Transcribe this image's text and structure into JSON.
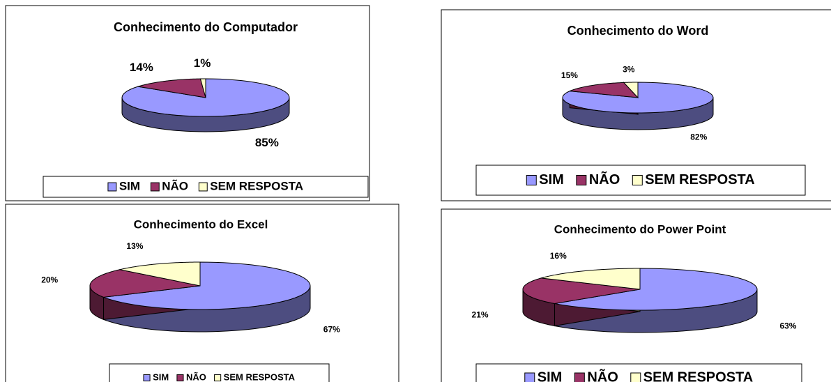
{
  "chart_data": [
    {
      "type": "pie",
      "title": "Conhecimento do Computador",
      "categories": [
        "SIM",
        "NÃO",
        "SEM RESPOSTA"
      ],
      "values": [
        85,
        14,
        1
      ],
      "value_labels": [
        "85%",
        "14%",
        "1%"
      ],
      "colors": [
        "#9999ff",
        "#993366",
        "#ffffcc"
      ],
      "legend": "bottom"
    },
    {
      "type": "pie",
      "title": "Conhecimento do Word",
      "categories": [
        "SIM",
        "NÃO",
        "SEM RESPOSTA"
      ],
      "values": [
        82,
        15,
        3
      ],
      "value_labels": [
        "82%",
        "15%",
        "3%"
      ],
      "colors": [
        "#9999ff",
        "#993366",
        "#ffffcc"
      ],
      "legend": "bottom"
    },
    {
      "type": "pie",
      "title": "Conhecimento do Excel",
      "categories": [
        "SIM",
        "NÃO",
        "SEM RESPOSTA"
      ],
      "values": [
        67,
        20,
        13
      ],
      "value_labels": [
        "67%",
        "20%",
        "13%"
      ],
      "colors": [
        "#9999ff",
        "#993366",
        "#ffffcc"
      ],
      "legend": "bottom"
    },
    {
      "type": "pie",
      "title": "Conhecimento do Power Point",
      "categories": [
        "SIM",
        "NÃO",
        "SEM RESPOSTA"
      ],
      "values": [
        63,
        21,
        16
      ],
      "value_labels": [
        "63%",
        "21%",
        "16%"
      ],
      "colors": [
        "#9999ff",
        "#993366",
        "#ffffcc"
      ],
      "legend": "bottom"
    }
  ]
}
